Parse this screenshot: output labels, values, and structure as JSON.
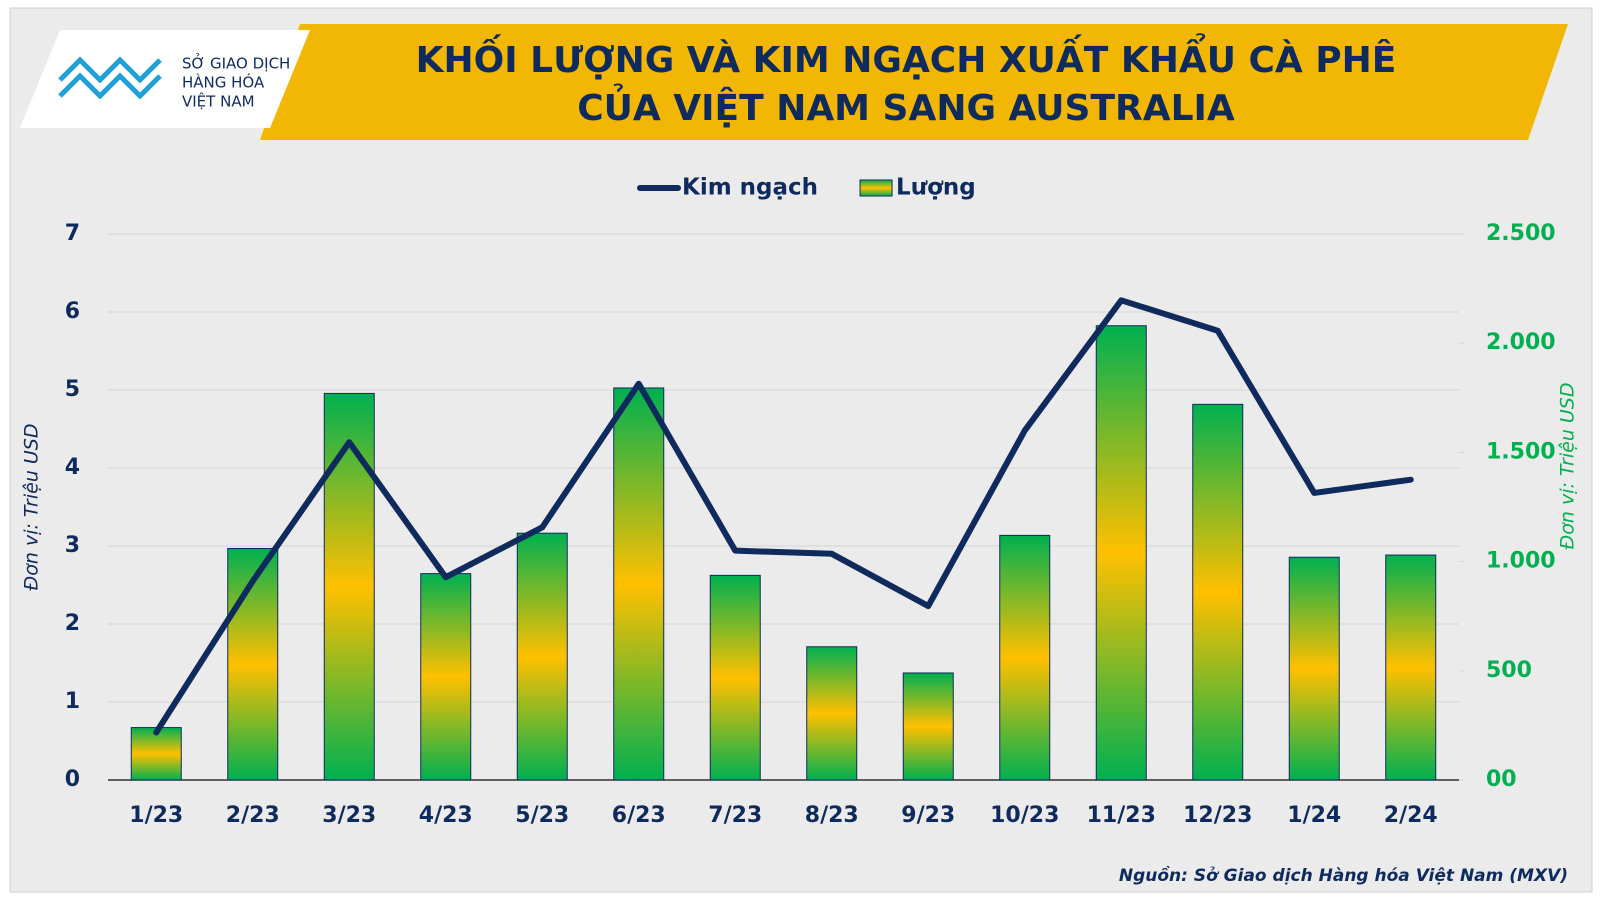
{
  "logo": {
    "lines": [
      "SỞ GIAO DỊCH",
      "HÀNG HÓA",
      "VIỆT NAM"
    ]
  },
  "chart_data": {
    "type": "combo",
    "title": [
      "KHỐI LƯỢNG VÀ KIM NGẠCH XUẤT KHẨU CÀ PHÊ",
      "CỦA VIỆT NAM SANG AUSTRALIA"
    ],
    "categories": [
      "1/23",
      "2/23",
      "3/23",
      "4/23",
      "5/23",
      "6/23",
      "7/23",
      "8/23",
      "9/23",
      "10/23",
      "11/23",
      "12/23",
      "1/24",
      "2/24"
    ],
    "series": [
      {
        "name": "Kim ngạch",
        "type": "line",
        "color": "#0f2a5c",
        "values": [
          0.61,
          2.55,
          4.33,
          2.6,
          3.24,
          5.08,
          2.94,
          2.9,
          2.23,
          4.48,
          6.15,
          5.76,
          3.68,
          3.85
        ]
      },
      {
        "name": "Lượng",
        "type": "bar",
        "axis": "y2",
        "color": "#00b050",
        "values": [
          240,
          1060,
          1770,
          945,
          1130,
          1795,
          937,
          610,
          490,
          1120,
          2080,
          1720,
          1020,
          1030
        ]
      }
    ],
    "ylabel": "Đơn vị: Triệu USD",
    "y2label": "Đơn vị: Triệu USD",
    "ylim": [
      0,
      7
    ],
    "yticks": [
      0,
      1,
      2,
      3,
      4,
      5,
      6,
      7
    ],
    "y2lim": [
      0,
      2500
    ],
    "y2ticks": [
      {
        "value": 0,
        "label": "00"
      },
      500,
      {
        "value": 1000,
        "label": "1.000"
      },
      {
        "value": 1500,
        "label": "1.500"
      },
      {
        "value": 2000,
        "label": "2.000"
      },
      {
        "value": 2500,
        "label": "2.500"
      }
    ],
    "grid": true,
    "source": "Nguồn: Sở Giao dịch Hàng hóa Việt Nam (MXV)"
  }
}
